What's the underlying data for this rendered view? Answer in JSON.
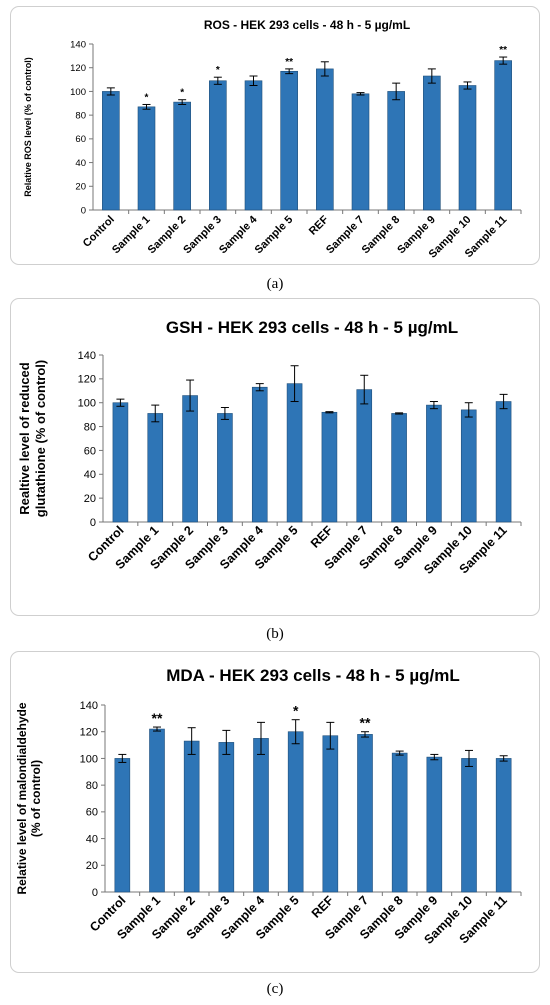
{
  "chart_data": [
    {
      "type": "bar",
      "title": "ROS - HEK 293 cells - 48 h - 5 µg/mL",
      "ylabel": "Relative ROS level (% of control)",
      "xlabel": "",
      "ylim": [
        0,
        140
      ],
      "yticks": [
        0,
        20,
        40,
        60,
        80,
        100,
        120,
        140
      ],
      "grid": false,
      "categories": [
        "Control",
        "Sample 1",
        "Sample 2",
        "Sample 3",
        "Sample 4",
        "Sample 5",
        "REF",
        "Sample 7",
        "Sample 8",
        "Sample 9",
        "Sample 10",
        "Sample 11"
      ],
      "values": [
        100,
        87,
        91,
        109,
        109,
        117,
        119,
        98,
        100,
        113,
        105,
        126
      ],
      "errors": [
        3,
        2,
        2,
        3,
        4,
        2,
        6,
        1,
        7,
        6,
        3,
        3
      ],
      "annotations": [
        "",
        "*",
        "*",
        "*",
        "",
        "**",
        "",
        "",
        "",
        "",
        "",
        "**"
      ],
      "color": "#2e75b6",
      "caption": "(a)"
    },
    {
      "type": "bar",
      "title": "GSH - HEK 293 cells - 48 h - 5 µg/mL",
      "ylabel": "Realtive level of reduced glutathione (% of control)",
      "ylabel_lines": [
        "Realtive level of reduced",
        "glutathione (% of control)"
      ],
      "xlabel": "",
      "ylim": [
        0,
        140
      ],
      "yticks": [
        0,
        20,
        40,
        60,
        80,
        100,
        120,
        140
      ],
      "grid": false,
      "categories": [
        "Control",
        "Sample 1",
        "Sample 2",
        "Sample 3",
        "Sample 4",
        "Sample 5",
        "REF",
        "Sample 7",
        "Sample 8",
        "Sample 9",
        "Sample 10",
        "Sample 11"
      ],
      "values": [
        100,
        91,
        106,
        91,
        113,
        116,
        92,
        111,
        91,
        98,
        94,
        101
      ],
      "errors": [
        3,
        7,
        13,
        5,
        3,
        15,
        0.5,
        12,
        0.5,
        3,
        6,
        6
      ],
      "annotations": [
        "",
        "",
        "",
        "",
        "",
        "",
        "",
        "",
        "",
        "",
        "",
        ""
      ],
      "color": "#2e75b6",
      "caption": "(b)"
    },
    {
      "type": "bar",
      "title": "MDA - HEK 293 cells - 48 h - 5 µg/mL",
      "ylabel": "Relative level of malondialdehyde (% of control)",
      "ylabel_lines": [
        "Relative level of malondialdehyde",
        "(% of control)"
      ],
      "xlabel": "",
      "ylim": [
        0,
        140
      ],
      "yticks": [
        0,
        20,
        40,
        60,
        80,
        100,
        120,
        140
      ],
      "grid": false,
      "categories": [
        "Control",
        "Sample 1",
        "Sample 2",
        "Sample 3",
        "Sample 4",
        "Sample 5",
        "REF",
        "Sample 7",
        "Sample 8",
        "Sample 9",
        "Sample 10",
        "Sample 11"
      ],
      "values": [
        100,
        122,
        113,
        112,
        115,
        120,
        117,
        118,
        104,
        101,
        100,
        100
      ],
      "errors": [
        3,
        1.5,
        10,
        9,
        12,
        9,
        10,
        2,
        1.5,
        2,
        6,
        2
      ],
      "annotations": [
        "",
        "**",
        "",
        "",
        "",
        "*",
        "",
        "**",
        "",
        "",
        "",
        ""
      ],
      "color": "#2e75b6",
      "caption": "(c)"
    }
  ]
}
